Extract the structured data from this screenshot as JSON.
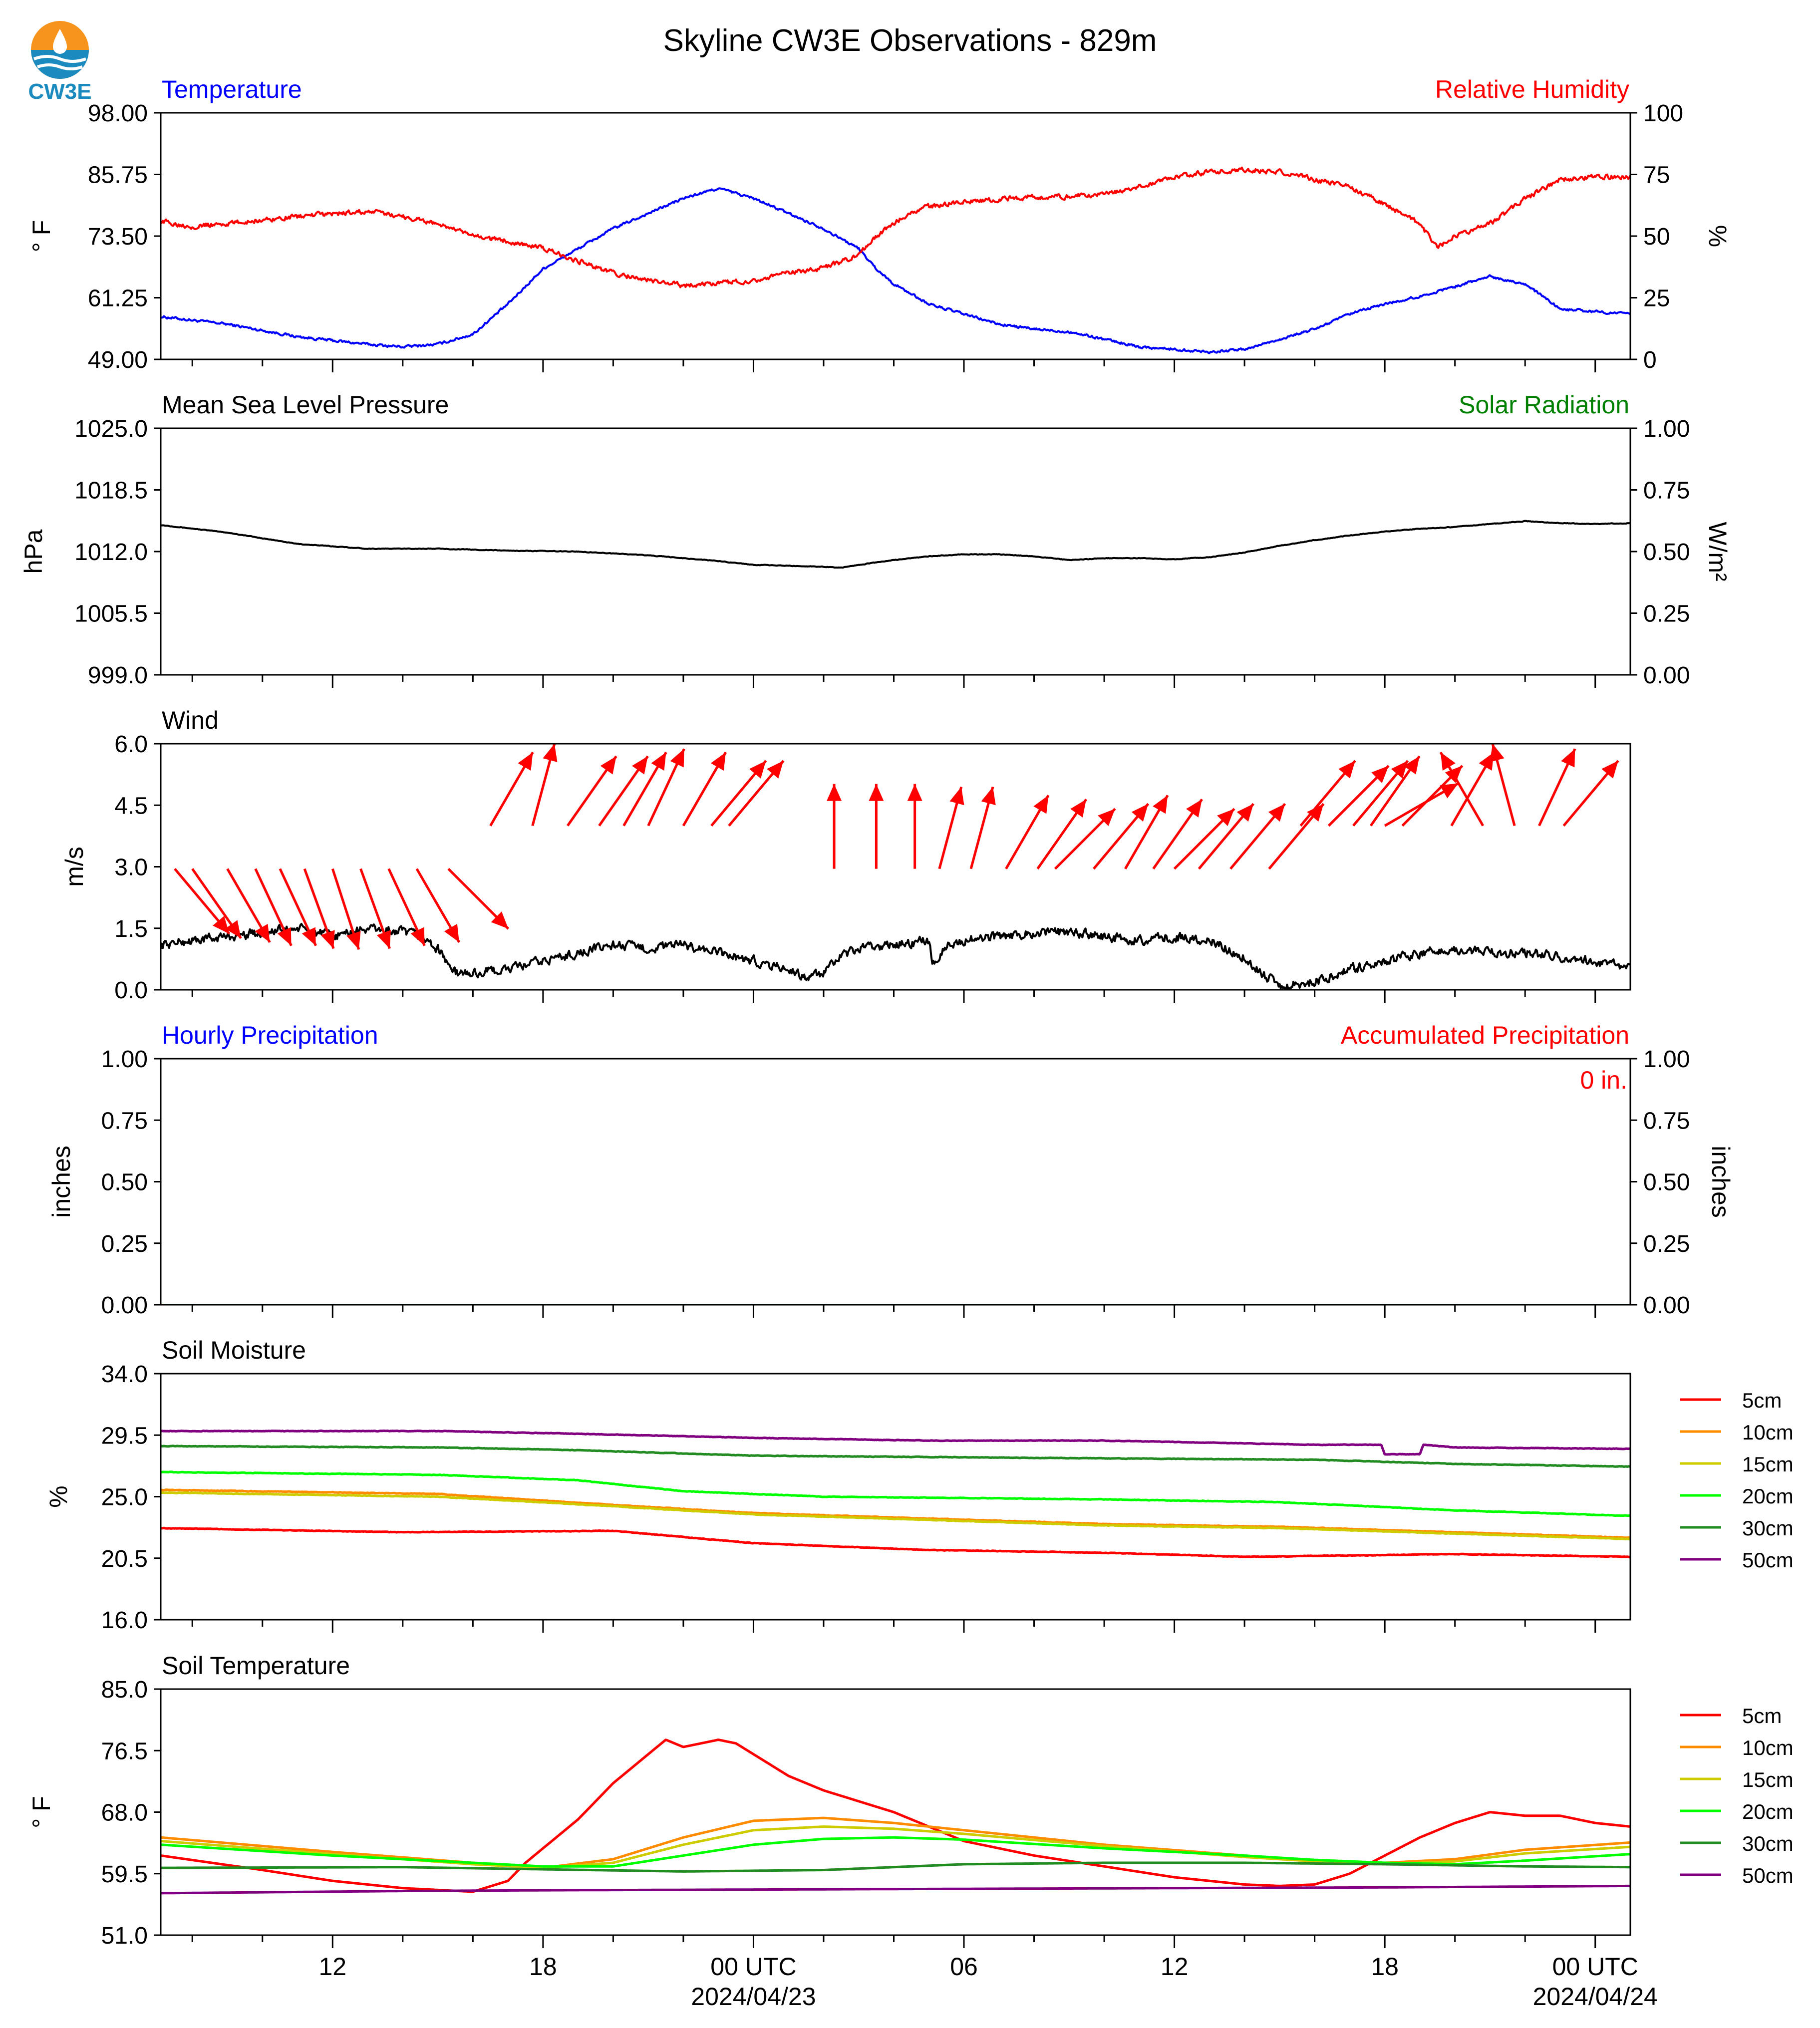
{
  "title": "Skyline CW3E Observations - 829m",
  "logo": {
    "text": "CW3E",
    "colors": [
      "#f7941d",
      "#1b8bbf",
      "#ffffff"
    ]
  },
  "x_axis": {
    "range_hours": [
      -16.9,
      25.0
    ],
    "ticks": [
      {
        "h": -12,
        "label": "12",
        "sub": ""
      },
      {
        "h": -6,
        "label": "18",
        "sub": ""
      },
      {
        "h": 0,
        "label": "00 UTC",
        "sub": "2024/04/23"
      },
      {
        "h": 6,
        "label": "06",
        "sub": ""
      },
      {
        "h": 12,
        "label": "12",
        "sub": ""
      },
      {
        "h": 18,
        "label": "18",
        "sub": ""
      },
      {
        "h": 24,
        "label": "00 UTC",
        "sub": "2024/04/24"
      }
    ]
  },
  "chart_data": [
    {
      "type": "line",
      "panel": "temperature-humidity",
      "left_title": "Temperature",
      "right_title": "Relative Humidity",
      "ylabel": "° F",
      "ylim": [
        49,
        98
      ],
      "yticks": [
        "49.00",
        "61.25",
        "73.50",
        "85.75",
        "98.00"
      ],
      "ylabel_right": "%",
      "ylim_right": [
        0,
        100
      ],
      "yticks_right": [
        "0",
        "25",
        "50",
        "75",
        "100"
      ],
      "series": [
        {
          "color": "#0000ff",
          "axis": "left",
          "noise": 0.4,
          "x": [
            -16.9,
            -15,
            -13,
            -11,
            -10,
            -9,
            -8,
            -7,
            -6,
            -5,
            -4,
            -3,
            -2,
            -1.5,
            -1,
            0,
            1,
            2,
            2.5,
            3,
            3.5,
            4,
            5,
            6,
            7,
            8,
            9,
            10,
            11,
            12,
            13,
            14,
            15,
            16,
            17,
            18,
            19,
            20,
            21,
            22,
            23,
            24,
            25
          ],
          "y": [
            57.5,
            56,
            53.5,
            52,
            51.5,
            52,
            54,
            60,
            67,
            71,
            75,
            78,
            81,
            82,
            83,
            81,
            78,
            75,
            73,
            71,
            67,
            64,
            60,
            58,
            56,
            55,
            54.5,
            53,
            51.5,
            51,
            50.5,
            51,
            53,
            55,
            58,
            60,
            61.5,
            63.5,
            65.5,
            64,
            59,
            58.5,
            58
          ]
        },
        {
          "color": "#ff0000",
          "axis": "right",
          "noise": 1.5,
          "x": [
            -16.9,
            -16,
            -15,
            -13,
            -11,
            -10,
            -9,
            -8,
            -7,
            -6,
            -5,
            -4,
            -3,
            -2,
            -1,
            0,
            1,
            2,
            3,
            3.5,
            4,
            4.5,
            5,
            6,
            7,
            8,
            9,
            10,
            11,
            12,
            13,
            14,
            15,
            16,
            17,
            18,
            19,
            19.5,
            20,
            21,
            22,
            23,
            24,
            25
          ],
          "y": [
            56,
            54,
            55,
            58,
            60,
            58,
            55,
            50,
            48,
            45,
            40,
            35,
            32,
            30,
            31,
            32,
            35,
            37,
            42,
            50,
            55,
            60,
            62,
            64,
            65,
            66,
            66,
            67,
            70,
            74,
            76,
            77,
            76,
            73,
            70,
            63,
            55,
            45,
            50,
            55,
            65,
            73,
            74,
            74
          ]
        }
      ]
    },
    {
      "type": "line",
      "panel": "pressure-solar",
      "left_title": "Mean Sea Level Pressure",
      "right_title": "Solar Radiation",
      "ylabel": "hPa",
      "ylim": [
        999,
        1025
      ],
      "yticks": [
        "999.0",
        "1005.5",
        "1012.0",
        "1018.5",
        "1025.0"
      ],
      "ylabel_right": "W/m²",
      "ylim_right": [
        0,
        1
      ],
      "yticks_right": [
        "0.00",
        "0.25",
        "0.50",
        "0.75",
        "1.00"
      ],
      "series": [
        {
          "color": "#000000",
          "axis": "left",
          "noise": 0.05,
          "x": [
            -16.9,
            -15,
            -13,
            -11,
            -9,
            -7,
            -5,
            -3,
            -1,
            0,
            1,
            2,
            2.5,
            3,
            4,
            5,
            6,
            7,
            8,
            9,
            10,
            11,
            12,
            13,
            14,
            15,
            16,
            17,
            18,
            19,
            20,
            21,
            22,
            23,
            24,
            25
          ],
          "y": [
            1014.8,
            1014.0,
            1012.8,
            1012.3,
            1012.3,
            1012.1,
            1012.0,
            1011.6,
            1011.0,
            1010.6,
            1010.5,
            1010.4,
            1010.3,
            1010.6,
            1011.1,
            1011.5,
            1011.7,
            1011.7,
            1011.5,
            1011.1,
            1011.3,
            1011.3,
            1011.2,
            1011.4,
            1011.9,
            1012.6,
            1013.2,
            1013.7,
            1014.1,
            1014.4,
            1014.6,
            1014.9,
            1015.2,
            1015.0,
            1014.9,
            1015.0
          ]
        }
      ]
    },
    {
      "type": "line",
      "panel": "wind",
      "left_title": "Wind",
      "right_title": "",
      "ylabel": "m/s",
      "ylim": [
        0,
        6
      ],
      "yticks": [
        "0.0",
        "1.5",
        "3.0",
        "4.5",
        "6.0"
      ],
      "series": [
        {
          "color": "#000000",
          "axis": "left",
          "noise": 0.18,
          "x": [
            -16.9,
            -16,
            -15,
            -14,
            -13,
            -12,
            -11.5,
            -11,
            -10,
            -9.5,
            -9,
            -8.5,
            -8,
            -7,
            -6,
            -5,
            -4,
            -3,
            -2,
            -1,
            0,
            1,
            1.5,
            2,
            2.5,
            3,
            4,
            5,
            5.1,
            5.5,
            6,
            7,
            8,
            9,
            10,
            11,
            12,
            13,
            14,
            14.5,
            15,
            16,
            17,
            18,
            19,
            20,
            21,
            22,
            23,
            24,
            25
          ],
          "y": [
            1.1,
            1.2,
            1.3,
            1.4,
            1.5,
            1.3,
            1.4,
            1.5,
            1.4,
            1.3,
            1.0,
            0.4,
            0.4,
            0.5,
            0.7,
            0.9,
            1.1,
            1.0,
            1.1,
            0.9,
            0.7,
            0.5,
            0.3,
            0.4,
            0.8,
            1.0,
            1.1,
            1.2,
            0.6,
            1.1,
            1.2,
            1.3,
            1.4,
            1.4,
            1.3,
            1.2,
            1.3,
            1.2,
            0.8,
            0.4,
            0.1,
            0.2,
            0.5,
            0.7,
            0.9,
            1.0,
            0.9,
            0.9,
            0.8,
            0.7,
            0.5
          ]
        }
      ],
      "barbs_dir": [
        140,
        145,
        150,
        155,
        155,
        160,
        162,
        160,
        155,
        150,
        135,
        30,
        15,
        35,
        35,
        30,
        25,
        30,
        40,
        40,
        0,
        0,
        0,
        15,
        15,
        30,
        35,
        45,
        40,
        30,
        35,
        45,
        40,
        45,
        40,
        35,
        60,
        45,
        30,
        330,
        345,
        25,
        40,
        40,
        40,
        40
      ],
      "barbs_at": [
        -16.5,
        -16.0,
        -15.0,
        -14.2,
        -13.5,
        -12.8,
        -12.0,
        -11.2,
        -10.4,
        -9.6,
        -8.7,
        -7.5,
        -6.3,
        -5.3,
        -4.4,
        -3.7,
        -3.0,
        -2.0,
        -1.2,
        -0.7,
        2.3,
        3.5,
        4.6,
        5.3,
        6.2,
        7.2,
        8.1,
        8.6,
        9.7,
        10.6,
        11.4,
        12.0,
        15.6,
        16.4,
        17.1,
        17.6,
        18.0,
        18.5,
        19.9,
        20.8,
        21.7,
        22.4,
        23.1,
        14.7,
        13.6,
        12.7
      ],
      "barb_speed": [
        3.0,
        3.0,
        3.0,
        3.0,
        3.0,
        3.0,
        3.0,
        3.0,
        3.0,
        3.0,
        3.0,
        4.0,
        4.0,
        4.0,
        4.0,
        4.0,
        4.0,
        4.0,
        4.0,
        4.0,
        3.0,
        3.0,
        3.0,
        3.0,
        3.0,
        3.0,
        3.0,
        3.0,
        3.0,
        3.0,
        3.0,
        3.0,
        4.0,
        4.0,
        4.0,
        4.0,
        4.0,
        4.0,
        4.0,
        4.0,
        4.0,
        4.0,
        4.0,
        3.0,
        3.0,
        3.0
      ]
    },
    {
      "type": "line",
      "panel": "precipitation",
      "left_title": "Hourly Precipitation",
      "right_title": "Accumulated Precipitation",
      "annotation": "0 in.",
      "ylabel": "inches",
      "ylim": [
        0,
        1
      ],
      "yticks": [
        "0.00",
        "0.25",
        "0.50",
        "0.75",
        "1.00"
      ],
      "ylabel_right": "inches",
      "ylim_right": [
        0,
        1
      ],
      "yticks_right": [
        "0.00",
        "0.25",
        "0.50",
        "0.75",
        "1.00"
      ],
      "series": [
        {
          "color": "#ff0000",
          "axis": "right",
          "noise": 0,
          "x": [
            -16.9,
            25
          ],
          "y": [
            0,
            0
          ]
        }
      ]
    },
    {
      "type": "line",
      "panel": "soil-moisture",
      "left_title": "Soil Moisture",
      "right_title": "",
      "ylabel": "%",
      "ylim": [
        16,
        34
      ],
      "yticks": [
        "16.0",
        "20.5",
        "25.0",
        "29.5",
        "34.0"
      ],
      "legend": "right",
      "series": [
        {
          "name": "5cm",
          "color": "#ff0000",
          "noise": 0.03,
          "x": [
            -16.9,
            -10,
            -4,
            0,
            5,
            10,
            14,
            20,
            25
          ],
          "y": [
            22.7,
            22.4,
            22.5,
            21.6,
            21.1,
            20.9,
            20.6,
            20.8,
            20.6
          ]
        },
        {
          "name": "10cm",
          "color": "#ff8c00",
          "noise": 0.03,
          "x": [
            -16.9,
            -9,
            -4,
            0,
            5,
            10,
            15,
            20,
            25
          ],
          "y": [
            25.5,
            25.2,
            24.4,
            23.8,
            23.4,
            23.0,
            22.8,
            22.4,
            22.0
          ]
        },
        {
          "name": "15cm",
          "color": "#cccc00",
          "noise": 0.03,
          "x": [
            -16.9,
            -9,
            -4,
            0,
            5,
            10,
            15,
            20,
            25
          ],
          "y": [
            25.3,
            25.0,
            24.3,
            23.7,
            23.3,
            22.9,
            22.7,
            22.3,
            21.9
          ]
        },
        {
          "name": "20cm",
          "color": "#00ff00",
          "noise": 0.03,
          "x": [
            -16.9,
            -9,
            -5,
            -2,
            2,
            6,
            10,
            15,
            20,
            25
          ],
          "y": [
            26.8,
            26.6,
            26.2,
            25.4,
            25.0,
            24.9,
            24.8,
            24.6,
            24.0,
            23.6
          ]
        },
        {
          "name": "30cm",
          "color": "#228b22",
          "noise": 0.03,
          "x": [
            -16.9,
            -9,
            -5,
            0,
            5,
            10,
            16,
            20,
            25
          ],
          "y": [
            28.7,
            28.6,
            28.4,
            28.0,
            27.9,
            27.8,
            27.7,
            27.4,
            27.2
          ]
        },
        {
          "name": "50cm",
          "color": "#800080",
          "noise": 0.03,
          "x": [
            -16.9,
            -9,
            -5,
            0,
            5,
            10,
            16,
            17.9,
            18,
            19,
            19.1,
            20,
            25
          ],
          "y": [
            29.8,
            29.8,
            29.6,
            29.3,
            29.1,
            29.1,
            28.8,
            28.8,
            28.1,
            28.1,
            28.8,
            28.6,
            28.5
          ]
        }
      ]
    },
    {
      "type": "line",
      "panel": "soil-temperature",
      "left_title": "Soil Temperature",
      "right_title": "",
      "ylabel": "° F",
      "ylim": [
        51,
        85
      ],
      "yticks": [
        "51.0",
        "59.5",
        "68.0",
        "76.5",
        "85.0"
      ],
      "legend": "right",
      "series": [
        {
          "name": "5cm",
          "color": "#ff0000",
          "noise": 0,
          "x": [
            -16.9,
            -14,
            -12,
            -10,
            -8,
            -7,
            -6.5,
            -6,
            -5,
            -4,
            -3,
            -2.5,
            -2,
            -1.5,
            -1,
            -0.5,
            0,
            1,
            2,
            4,
            6,
            8,
            10,
            12,
            14,
            15,
            16,
            17,
            18,
            19,
            20,
            21,
            22,
            23,
            24,
            25
          ],
          "y": [
            62.0,
            60.0,
            58.5,
            57.5,
            57.0,
            58.5,
            61.0,
            63.0,
            67.0,
            72.0,
            76.0,
            78.0,
            77.0,
            77.5,
            78.0,
            77.5,
            76.0,
            73.0,
            71.0,
            68.0,
            64.0,
            62.0,
            60.5,
            59.0,
            58.0,
            57.8,
            58.0,
            59.5,
            62.0,
            64.5,
            66.5,
            68.0,
            67.5,
            67.5,
            66.5,
            66.0
          ]
        },
        {
          "name": "10cm",
          "color": "#ff8c00",
          "noise": 0,
          "x": [
            -16.9,
            -12,
            -8,
            -6,
            -4,
            -2,
            0,
            2,
            4,
            6,
            10,
            14,
            16,
            18,
            20,
            22,
            25
          ],
          "y": [
            64.5,
            62.5,
            61.0,
            60.3,
            61.5,
            64.5,
            66.8,
            67.2,
            66.5,
            65.5,
            63.5,
            62.0,
            61.2,
            61.0,
            61.5,
            62.8,
            63.8
          ]
        },
        {
          "name": "15cm",
          "color": "#cccc00",
          "noise": 0,
          "x": [
            -16.9,
            -12,
            -8,
            -6,
            -4,
            -2,
            0,
            2,
            4,
            6,
            10,
            14,
            16,
            18,
            20,
            22,
            25
          ],
          "y": [
            64.0,
            62.2,
            60.8,
            60.3,
            61.0,
            63.5,
            65.5,
            66.0,
            65.7,
            65.0,
            63.3,
            61.8,
            61.2,
            60.8,
            61.2,
            62.3,
            63.2
          ]
        },
        {
          "name": "20cm",
          "color": "#00ff00",
          "noise": 0,
          "x": [
            -16.9,
            -12,
            -8,
            -6,
            -4,
            -2,
            0,
            2,
            4,
            6,
            10,
            14,
            16,
            18,
            20,
            22,
            25
          ],
          "y": [
            63.5,
            62.0,
            61.0,
            60.5,
            60.5,
            62.0,
            63.5,
            64.3,
            64.5,
            64.2,
            63.0,
            62.0,
            61.4,
            61.0,
            60.8,
            61.3,
            62.2
          ]
        },
        {
          "name": "30cm",
          "color": "#228b22",
          "noise": 0,
          "x": [
            -16.9,
            -10,
            -6,
            -2,
            2,
            6,
            10,
            14,
            18,
            22,
            25
          ],
          "y": [
            60.3,
            60.4,
            60.1,
            59.8,
            60.0,
            60.8,
            61.0,
            61.0,
            60.8,
            60.5,
            60.4
          ]
        },
        {
          "name": "50cm",
          "color": "#800080",
          "noise": 0,
          "x": [
            -16.9,
            -10,
            -6,
            0,
            6,
            12,
            18,
            25
          ],
          "y": [
            56.8,
            57.1,
            57.2,
            57.3,
            57.4,
            57.5,
            57.6,
            57.8
          ]
        }
      ]
    }
  ]
}
